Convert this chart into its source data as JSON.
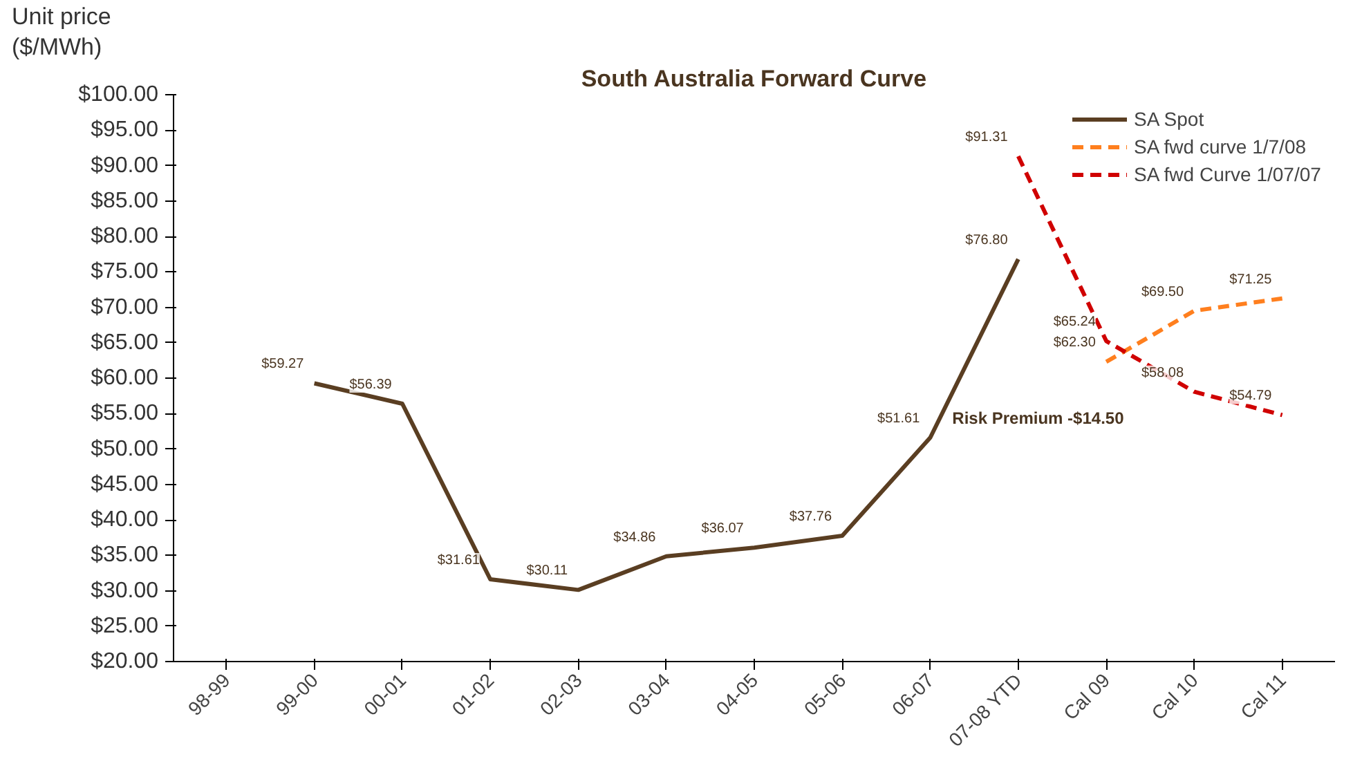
{
  "chart_data": {
    "type": "line",
    "title": "South Australia Forward Curve",
    "ylabel": "Unit price\n($/MWh)",
    "categories": [
      "98-99",
      "99-00",
      "00-01",
      "01-02",
      "02-03",
      "03-04",
      "04-05",
      "05-06",
      "06-07",
      "07-08 YTD",
      "Cal 09",
      "Cal 10",
      "Cal 11"
    ],
    "series": [
      {
        "name": "SA Spot",
        "color": "#5a3e22",
        "line_style": "solid",
        "values": [
          null,
          59.27,
          56.39,
          31.61,
          30.11,
          34.86,
          36.07,
          37.76,
          51.61,
          76.8,
          null,
          null,
          null
        ],
        "value_labels": [
          null,
          "$59.27",
          "$56.39",
          "$31.61",
          "$30.11",
          "$34.86",
          "$36.07",
          "$37.76",
          "$51.61",
          "$76.80",
          null,
          null,
          null
        ]
      },
      {
        "name": "SA fwd curve 1/7/08",
        "color": "#ff7f1e",
        "line_style": "dashed",
        "values": [
          null,
          null,
          null,
          null,
          null,
          null,
          null,
          null,
          null,
          null,
          62.3,
          69.5,
          71.25
        ],
        "value_labels": [
          null,
          null,
          null,
          null,
          null,
          null,
          null,
          null,
          null,
          null,
          "$62.30",
          "$69.50",
          "$71.25"
        ]
      },
      {
        "name": "SA fwd Curve 1/07/07",
        "color": "#d00000",
        "line_style": "dashed",
        "values": [
          null,
          null,
          null,
          null,
          null,
          null,
          null,
          null,
          null,
          91.31,
          65.24,
          58.08,
          54.79
        ],
        "value_labels": [
          null,
          null,
          null,
          null,
          null,
          null,
          null,
          null,
          null,
          "$91.31",
          "$65.24",
          "$58.08",
          "$54.79"
        ]
      }
    ],
    "ylim": [
      20,
      100
    ],
    "yticks": [
      {
        "value": 20,
        "label": "$20.00"
      },
      {
        "value": 25,
        "label": "$25.00"
      },
      {
        "value": 30,
        "label": "$30.00"
      },
      {
        "value": 35,
        "label": "$35.00"
      },
      {
        "value": 40,
        "label": "$40.00"
      },
      {
        "value": 45,
        "label": "$45.00"
      },
      {
        "value": 50,
        "label": "$50.00"
      },
      {
        "value": 55,
        "label": "$55.00"
      },
      {
        "value": 60,
        "label": "$60.00"
      },
      {
        "value": 65,
        "label": "$65.00"
      },
      {
        "value": 70,
        "label": "$70.00"
      },
      {
        "value": 75,
        "label": "$75.00"
      },
      {
        "value": 80,
        "label": "$80.00"
      },
      {
        "value": 85,
        "label": "$85.00"
      },
      {
        "value": 90,
        "label": "$90.00"
      },
      {
        "value": 95,
        "label": "$95.00"
      },
      {
        "value": 100,
        "label": "$100.00"
      }
    ],
    "annotations": [
      "Risk Premium -$14.50"
    ],
    "grid": false,
    "legend": "top right",
    "marker": "none"
  }
}
